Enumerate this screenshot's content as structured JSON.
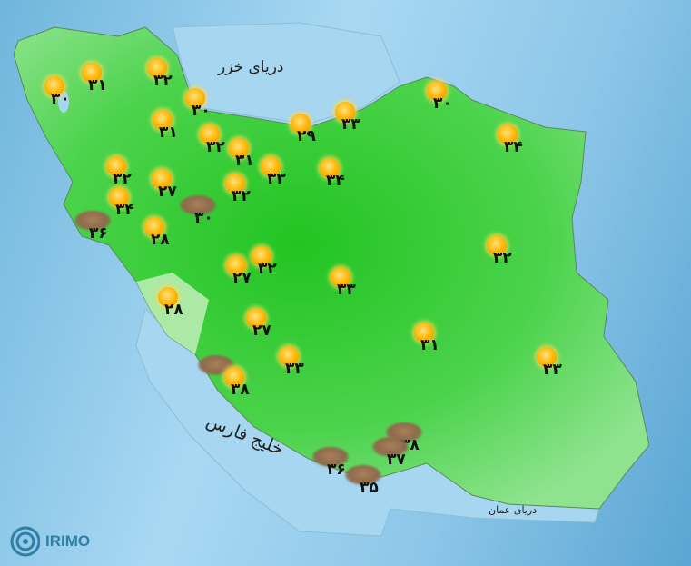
{
  "map": {
    "seas": {
      "caspian": "دریای خزر",
      "persian_gulf": "خلیج فارس",
      "oman": "دریای عمان"
    },
    "colors": {
      "land": "#3ecf3e",
      "sea": "#a6d6f0",
      "sunny": "#ffb300",
      "dust": "#8d6a4c"
    },
    "stations": [
      {
        "icon": "sunny",
        "temp": "۳۰"
      },
      {
        "icon": "sunny",
        "temp": "۳۱"
      },
      {
        "icon": "sunny",
        "temp": "۳۲"
      },
      {
        "icon": "sunny",
        "temp": "۳۰"
      },
      {
        "icon": "sunny",
        "temp": "۳۱"
      },
      {
        "icon": "sunny",
        "temp": "۳۲"
      },
      {
        "icon": "sunny",
        "temp": "۳۱"
      },
      {
        "icon": "sunny",
        "temp": "۲۹"
      },
      {
        "icon": "sunny",
        "temp": "۳۳"
      },
      {
        "icon": "sunny",
        "temp": "۳۰"
      },
      {
        "icon": "sunny",
        "temp": "۳۴"
      },
      {
        "icon": "sunny",
        "temp": "۳۲"
      },
      {
        "icon": "sunny",
        "temp": "۲۷"
      },
      {
        "icon": "sunny",
        "temp": "۳۳"
      },
      {
        "icon": "sunny",
        "temp": "۳۴"
      },
      {
        "icon": "sunny",
        "temp": "۳۲"
      },
      {
        "icon": "sunny",
        "temp": "۳۴"
      },
      {
        "icon": "dust",
        "temp": "۳۰"
      },
      {
        "icon": "dust",
        "temp": "۳۶"
      },
      {
        "icon": "sunny",
        "temp": "۲۸"
      },
      {
        "icon": "sunny",
        "temp": "۳۲"
      },
      {
        "icon": "sunny",
        "temp": "۲۷"
      },
      {
        "icon": "sunny",
        "temp": "۳۲"
      },
      {
        "icon": "sunny",
        "temp": "۳۳"
      },
      {
        "icon": "sunny",
        "temp": "۲۸"
      },
      {
        "icon": "sunny",
        "temp": "۲۷"
      },
      {
        "icon": "sunny",
        "temp": "۳۳"
      },
      {
        "icon": "sunny",
        "temp": "۳۱"
      },
      {
        "icon": "sunny",
        "temp": "۳۳"
      },
      {
        "icon": "dust",
        "temp": ""
      },
      {
        "icon": "sunny",
        "temp": "۳۸"
      },
      {
        "icon": "dust",
        "temp": "۳۸"
      },
      {
        "icon": "dust",
        "temp": "۳۷"
      },
      {
        "icon": "dust",
        "temp": "۳۶"
      },
      {
        "icon": "dust",
        "temp": "۳۵"
      }
    ]
  },
  "logo": {
    "text": "IRIMO"
  }
}
